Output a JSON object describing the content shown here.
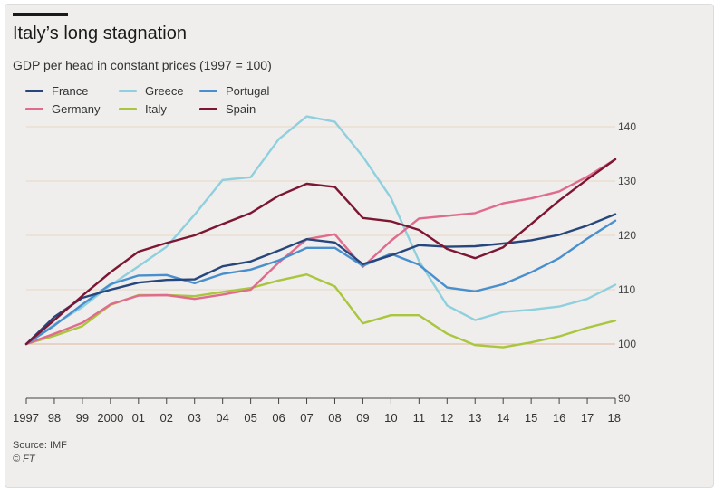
{
  "header": {
    "title": "Italy’s long stagnation",
    "subtitle": "GDP per head in constant prices (1997 = 100)"
  },
  "footer": {
    "source": "Source: IMF",
    "copyright": "© FT"
  },
  "chart_data": {
    "type": "line",
    "title": "Italy’s long stagnation",
    "subtitle": "GDP per head in constant prices (1997 = 100)",
    "x": [
      1997,
      1998,
      1999,
      2000,
      2001,
      2002,
      2003,
      2004,
      2005,
      2006,
      2007,
      2008,
      2009,
      2010,
      2011,
      2012,
      2013,
      2014,
      2015,
      2016,
      2017,
      2018
    ],
    "x_tick_labels": [
      "1997",
      "98",
      "99",
      "2000",
      "01",
      "02",
      "03",
      "04",
      "05",
      "06",
      "07",
      "08",
      "09",
      "10",
      "11",
      "12",
      "13",
      "14",
      "15",
      "16",
      "17",
      "18"
    ],
    "ylim": [
      90,
      143
    ],
    "y_ticks": [
      90,
      100,
      110,
      120,
      130,
      140
    ],
    "y_axis_position": "right",
    "grid": "horizontal",
    "legend_position": "top-left",
    "series": [
      {
        "name": "France",
        "color": "#27477c",
        "values": [
          100,
          105,
          108.5,
          110,
          111.3,
          111.8,
          111.9,
          114.3,
          115.2,
          117.2,
          119.3,
          118.7,
          114.7,
          116.3,
          118.2,
          117.9,
          118,
          118.5,
          119.1,
          120.1,
          121.8,
          123.9
        ]
      },
      {
        "name": "Germany",
        "color": "#e06b8d",
        "values": [
          100,
          101.9,
          103.9,
          107.3,
          108.9,
          109,
          108.3,
          109.1,
          110,
          115,
          119.3,
          120.2,
          114.2,
          119,
          123.1,
          123.6,
          124.1,
          125.9,
          126.8,
          128.1,
          130.8,
          134
        ]
      },
      {
        "name": "Greece",
        "color": "#8fd0de",
        "values": [
          100,
          103.6,
          106.8,
          110.8,
          114.3,
          117.9,
          123.8,
          130.2,
          130.7,
          137.7,
          141.9,
          140.9,
          134.5,
          126.9,
          115.3,
          107.1,
          104.4,
          105.9,
          106.3,
          106.9,
          108.3,
          110.9
        ]
      },
      {
        "name": "Italy",
        "color": "#a9c63e",
        "values": [
          100,
          101.5,
          103.3,
          107.2,
          109,
          109,
          108.8,
          109.6,
          110.3,
          111.7,
          112.8,
          110.6,
          103.8,
          105.3,
          105.3,
          101.9,
          99.8,
          99.4,
          100.3,
          101.4,
          103,
          104.3
        ]
      },
      {
        "name": "Portugal",
        "color": "#4a8fcd",
        "values": [
          100,
          103.4,
          107.3,
          111,
          112.6,
          112.7,
          111.2,
          112.9,
          113.7,
          115.4,
          117.7,
          117.7,
          114.4,
          116.6,
          114.6,
          110.4,
          109.7,
          111,
          113.2,
          115.8,
          119.4,
          122.7
        ]
      },
      {
        "name": "Spain",
        "color": "#7c1632",
        "values": [
          100,
          104.4,
          108.9,
          113.2,
          117,
          118.6,
          120,
          122.1,
          124.1,
          127.3,
          129.5,
          128.9,
          123.2,
          122.6,
          121,
          117.5,
          115.8,
          117.8,
          122.1,
          126.4,
          130.3,
          134
        ]
      }
    ]
  }
}
